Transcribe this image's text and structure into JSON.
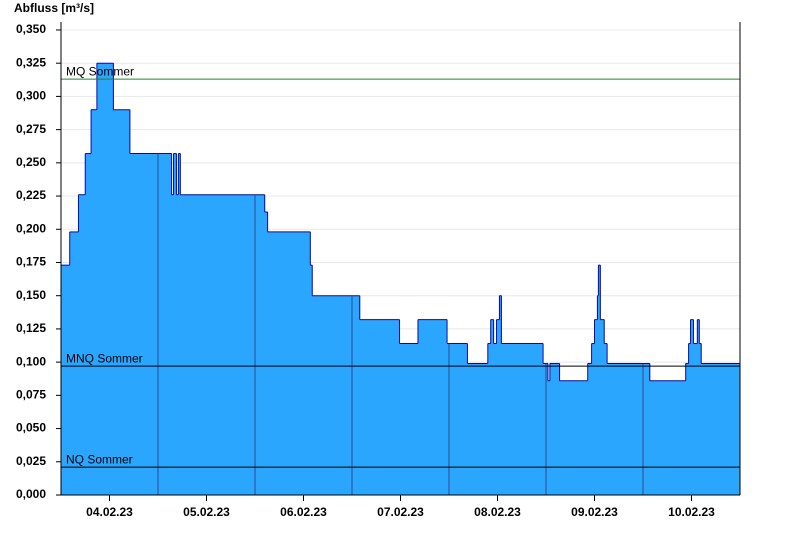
{
  "chart_data": {
    "type": "step-area",
    "title": "Abfluss [m³/s]",
    "x": [
      0.0,
      0.09,
      0.18,
      0.25,
      0.31,
      0.37,
      0.54,
      0.71,
      1.14,
      1.16,
      1.19,
      1.21,
      1.23,
      2.1,
      2.13,
      2.57,
      2.59,
      3.08,
      3.49,
      3.68,
      3.98,
      4.19,
      4.4,
      4.43,
      4.46,
      4.49,
      4.52,
      4.54,
      4.97,
      5.02,
      5.04,
      5.14,
      5.43,
      5.47,
      5.5,
      5.53,
      5.54,
      5.56,
      5.6,
      5.63,
      6.07,
      6.44,
      6.47,
      6.49,
      6.52,
      6.56,
      6.58,
      6.6
    ],
    "values": [
      0.173,
      0.198,
      0.226,
      0.257,
      0.29,
      0.325,
      0.29,
      0.257,
      0.226,
      0.257,
      0.226,
      0.257,
      0.226,
      0.213,
      0.198,
      0.173,
      0.15,
      0.132,
      0.114,
      0.132,
      0.114,
      0.099,
      0.114,
      0.132,
      0.114,
      0.132,
      0.15,
      0.114,
      0.099,
      0.086,
      0.099,
      0.086,
      0.099,
      0.114,
      0.132,
      0.15,
      0.173,
      0.132,
      0.114,
      0.099,
      0.086,
      0.099,
      0.114,
      0.132,
      0.114,
      0.132,
      0.114,
      0.099
    ],
    "color": "#2aa6ff",
    "line_color": "#0a0aa0",
    "xlim": [
      0,
      7
    ],
    "xticks": [
      {
        "value": 0.5,
        "label": "04.02.23"
      },
      {
        "value": 1.5,
        "label": "05.02.23"
      },
      {
        "value": 2.5,
        "label": "06.02.23"
      },
      {
        "value": 3.5,
        "label": "07.02.23"
      },
      {
        "value": 4.5,
        "label": "08.02.23"
      },
      {
        "value": 5.5,
        "label": "09.02.23"
      },
      {
        "value": 6.5,
        "label": "10.02.23"
      }
    ],
    "xgrid": [
      1,
      2,
      3,
      4,
      5,
      6
    ],
    "xgrid_color": "#2b4a8c",
    "ylim": [
      0,
      0.356
    ],
    "yticks": [
      {
        "value": 0,
        "label": "0,000"
      },
      {
        "value": 0.025,
        "label": "0,025"
      },
      {
        "value": 0.05,
        "label": "0,050"
      },
      {
        "value": 0.075,
        "label": "0,075"
      },
      {
        "value": 0.1,
        "label": "0,100"
      },
      {
        "value": 0.125,
        "label": "0,125"
      },
      {
        "value": 0.15,
        "label": "0,150"
      },
      {
        "value": 0.175,
        "label": "0,175"
      },
      {
        "value": 0.2,
        "label": "0,200"
      },
      {
        "value": 0.225,
        "label": "0,225"
      },
      {
        "value": 0.25,
        "label": "0,250"
      },
      {
        "value": 0.275,
        "label": "0,275"
      },
      {
        "value": 0.3,
        "label": "0,300"
      },
      {
        "value": 0.325,
        "label": "0,325"
      },
      {
        "value": 0.35,
        "label": "0,350"
      }
    ],
    "grid": true,
    "reference_lines": [
      {
        "label": "MQ Sommer",
        "value": 0.313,
        "color": "#2e7d32"
      },
      {
        "label": "MNQ Sommer",
        "value": 0.097,
        "color": "#000000"
      },
      {
        "label": "NQ Sommer",
        "value": 0.021,
        "color": "#000000"
      }
    ]
  }
}
